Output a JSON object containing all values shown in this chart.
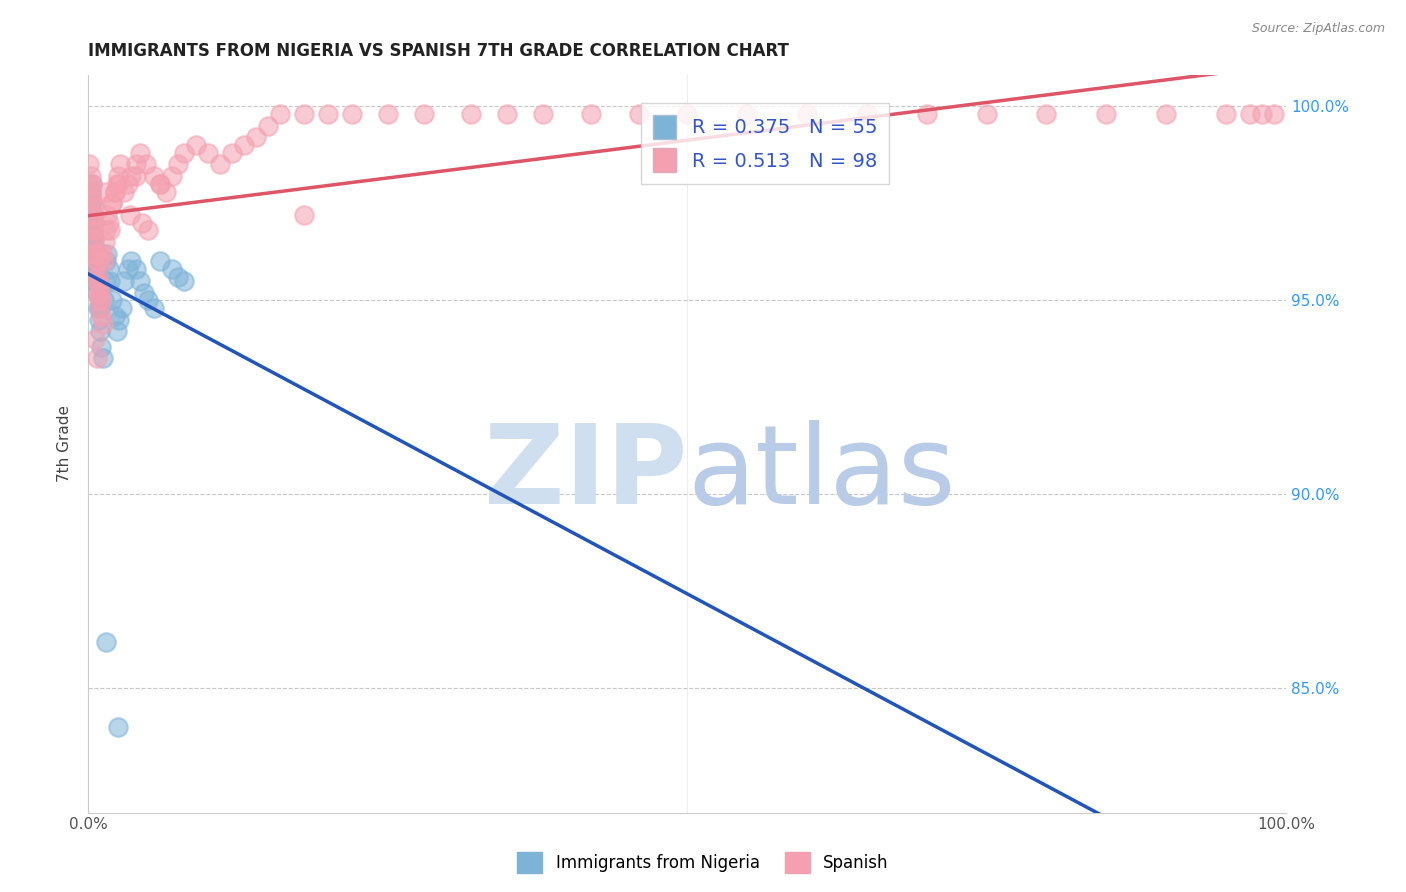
{
  "title": "IMMIGRANTS FROM NIGERIA VS SPANISH 7TH GRADE CORRELATION CHART",
  "source": "Source: ZipAtlas.com",
  "ylabel": "7th Grade",
  "legend_label1": "Immigrants from Nigeria",
  "legend_label2": "Spanish",
  "r1": 0.375,
  "n1": 55,
  "r2": 0.513,
  "n2": 98,
  "color1": "#7EB3D8",
  "color2": "#F4A0B0",
  "trendline1_color": "#2255BB",
  "trendline2_color": "#DD5566",
  "watermark_zip_color": "#D0DFF0",
  "watermark_atlas_color": "#B8CCE8",
  "xmin": 0.0,
  "xmax": 1.0,
  "ymin": 0.818,
  "ymax": 1.008,
  "ytick_right": [
    0.85,
    0.9,
    0.95,
    1.0
  ],
  "ytick_right_labels": [
    "85.0%",
    "90.0%",
    "95.0%",
    "100.0%"
  ],
  "blue_x": [
    0.001,
    0.001,
    0.002,
    0.002,
    0.002,
    0.002,
    0.003,
    0.003,
    0.003,
    0.003,
    0.004,
    0.004,
    0.004,
    0.004,
    0.005,
    0.005,
    0.005,
    0.005,
    0.006,
    0.006,
    0.006,
    0.007,
    0.007,
    0.008,
    0.008,
    0.009,
    0.01,
    0.01,
    0.011,
    0.012,
    0.013,
    0.014,
    0.015,
    0.016,
    0.017,
    0.018,
    0.02,
    0.022,
    0.024,
    0.026,
    0.028,
    0.03,
    0.033,
    0.036,
    0.04,
    0.043,
    0.047,
    0.05,
    0.055,
    0.06,
    0.07,
    0.075,
    0.08,
    0.015,
    0.025
  ],
  "blue_y": [
    0.96,
    0.958,
    0.968,
    0.972,
    0.975,
    0.978,
    0.965,
    0.97,
    0.975,
    0.98,
    0.96,
    0.963,
    0.967,
    0.972,
    0.958,
    0.962,
    0.965,
    0.97,
    0.955,
    0.96,
    0.963,
    0.952,
    0.958,
    0.948,
    0.955,
    0.945,
    0.942,
    0.948,
    0.938,
    0.935,
    0.95,
    0.955,
    0.96,
    0.962,
    0.958,
    0.955,
    0.95,
    0.946,
    0.942,
    0.945,
    0.948,
    0.955,
    0.958,
    0.96,
    0.958,
    0.955,
    0.952,
    0.95,
    0.948,
    0.96,
    0.958,
    0.956,
    0.955,
    0.862,
    0.84
  ],
  "pink_x": [
    0.001,
    0.001,
    0.002,
    0.002,
    0.002,
    0.003,
    0.003,
    0.003,
    0.003,
    0.004,
    0.004,
    0.004,
    0.005,
    0.005,
    0.005,
    0.005,
    0.006,
    0.006,
    0.007,
    0.007,
    0.008,
    0.008,
    0.008,
    0.009,
    0.009,
    0.01,
    0.01,
    0.011,
    0.011,
    0.012,
    0.013,
    0.014,
    0.015,
    0.016,
    0.017,
    0.018,
    0.02,
    0.022,
    0.024,
    0.025,
    0.027,
    0.03,
    0.033,
    0.036,
    0.04,
    0.043,
    0.048,
    0.055,
    0.06,
    0.065,
    0.07,
    0.075,
    0.08,
    0.09,
    0.1,
    0.11,
    0.12,
    0.13,
    0.14,
    0.15,
    0.16,
    0.18,
    0.2,
    0.22,
    0.25,
    0.28,
    0.32,
    0.35,
    0.38,
    0.42,
    0.46,
    0.5,
    0.55,
    0.6,
    0.65,
    0.7,
    0.75,
    0.8,
    0.85,
    0.9,
    0.95,
    0.97,
    0.98,
    0.99,
    0.02,
    0.015,
    0.035,
    0.05,
    0.008,
    0.045,
    0.006,
    0.007,
    0.18,
    0.025,
    0.012,
    0.04,
    0.06,
    0.022
  ],
  "pink_y": [
    0.98,
    0.985,
    0.975,
    0.978,
    0.982,
    0.968,
    0.972,
    0.976,
    0.98,
    0.965,
    0.968,
    0.972,
    0.962,
    0.966,
    0.97,
    0.974,
    0.958,
    0.962,
    0.955,
    0.96,
    0.952,
    0.956,
    0.96,
    0.95,
    0.954,
    0.948,
    0.952,
    0.946,
    0.95,
    0.944,
    0.96,
    0.965,
    0.968,
    0.972,
    0.97,
    0.968,
    0.975,
    0.978,
    0.98,
    0.982,
    0.985,
    0.978,
    0.98,
    0.982,
    0.985,
    0.988,
    0.985,
    0.982,
    0.98,
    0.978,
    0.982,
    0.985,
    0.988,
    0.99,
    0.988,
    0.985,
    0.988,
    0.99,
    0.992,
    0.995,
    0.998,
    0.998,
    0.998,
    0.998,
    0.998,
    0.998,
    0.998,
    0.998,
    0.998,
    0.998,
    0.998,
    0.998,
    0.998,
    0.998,
    0.998,
    0.998,
    0.998,
    0.998,
    0.998,
    0.998,
    0.998,
    0.998,
    0.998,
    0.998,
    0.975,
    0.978,
    0.972,
    0.968,
    0.962,
    0.97,
    0.94,
    0.935,
    0.972,
    0.98,
    0.962,
    0.982,
    0.98,
    0.978
  ]
}
